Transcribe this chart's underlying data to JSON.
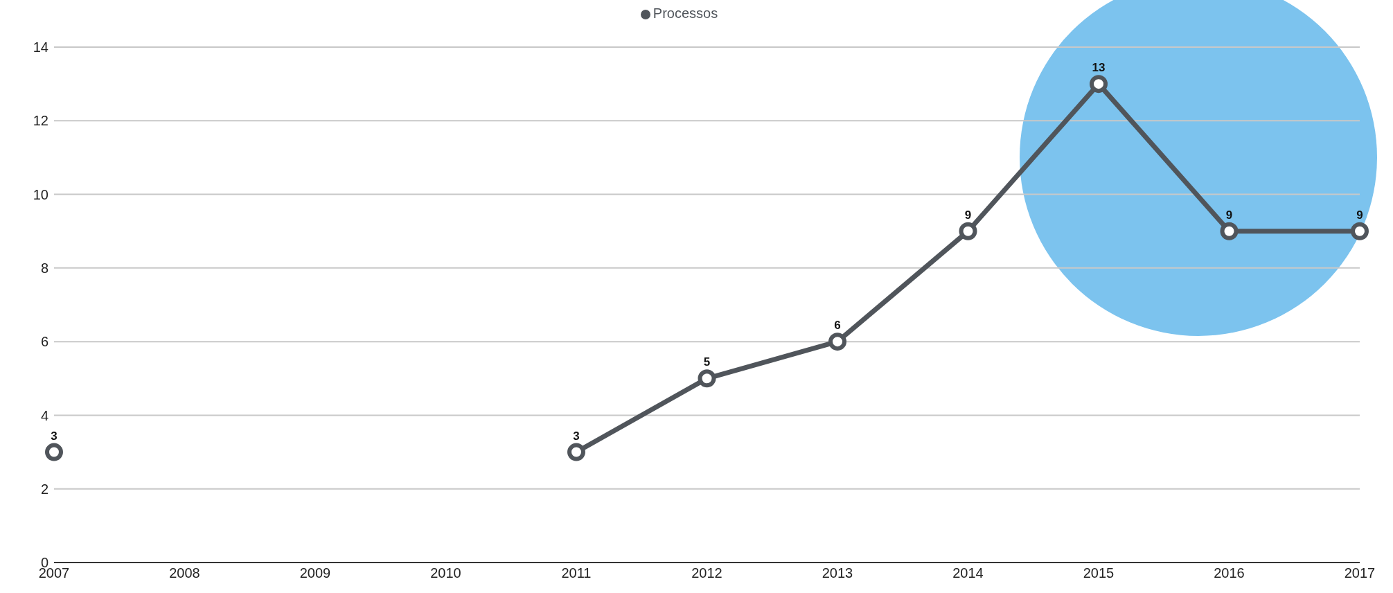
{
  "chart_data": {
    "type": "line",
    "categories": [
      "2007",
      "2008",
      "2009",
      "2010",
      "2011",
      "2012",
      "2013",
      "2014",
      "2015",
      "2016",
      "2017"
    ],
    "series": [
      {
        "name": "Processos",
        "color": "#50555b",
        "values": [
          3,
          null,
          null,
          null,
          3,
          5,
          6,
          9,
          13,
          9,
          9
        ]
      }
    ],
    "ylim": [
      0,
      14
    ],
    "yticks": [
      0,
      2,
      4,
      6,
      8,
      10,
      12,
      14
    ],
    "grid": "y",
    "legend": "top",
    "marker": "circle",
    "data_labels": true
  }
}
